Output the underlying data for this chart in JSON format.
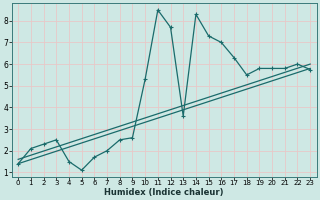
{
  "title": "",
  "xlabel": "Humidex (Indice chaleur)",
  "ylabel": "",
  "bg_color": "#cee8e4",
  "grid_color": "#e8c8c8",
  "line_color": "#1a6b6b",
  "xlim": [
    -0.5,
    23.5
  ],
  "ylim": [
    0.8,
    8.8
  ],
  "xticks": [
    0,
    1,
    2,
    3,
    4,
    5,
    6,
    7,
    8,
    9,
    10,
    11,
    12,
    13,
    14,
    15,
    16,
    17,
    18,
    19,
    20,
    21,
    22,
    23
  ],
  "yticks": [
    1,
    2,
    3,
    4,
    5,
    6,
    7,
    8
  ],
  "line1_x": [
    0,
    1,
    2,
    3,
    4,
    5,
    6,
    7,
    8,
    9,
    10,
    11,
    12,
    13,
    14,
    15,
    16,
    17,
    18,
    19,
    20,
    21,
    22,
    23
  ],
  "line1_y": [
    1.4,
    2.1,
    2.3,
    2.5,
    1.5,
    1.1,
    1.7,
    2.0,
    2.5,
    2.6,
    5.3,
    8.5,
    7.7,
    3.6,
    8.3,
    7.3,
    7.0,
    6.3,
    5.5,
    5.8,
    5.8,
    5.8,
    6.0,
    5.75
  ],
  "line2_x": [
    0,
    23
  ],
  "line2_y": [
    1.4,
    5.8
  ],
  "line3_x": [
    0,
    23
  ],
  "line3_y": [
    1.6,
    6.0
  ]
}
